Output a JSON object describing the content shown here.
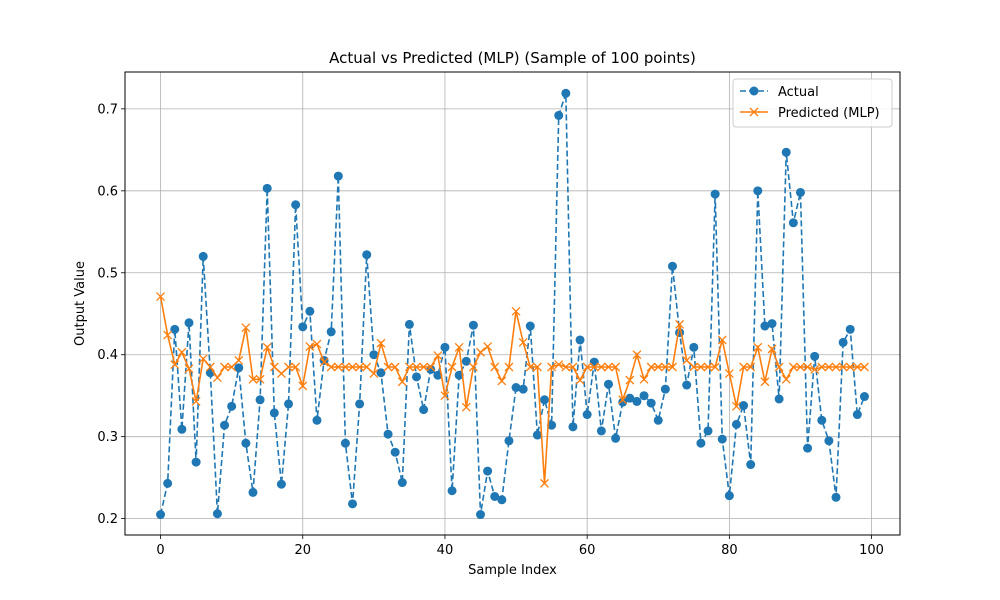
{
  "chart_data": {
    "type": "line",
    "title": "Actual vs Predicted (MLP) (Sample of 100 points)",
    "xlabel": "Sample Index",
    "ylabel": "Output Value",
    "xlim": [
      -5,
      104
    ],
    "ylim": [
      0.18,
      0.745
    ],
    "xticks": [
      0,
      20,
      40,
      60,
      80,
      100
    ],
    "yticks": [
      0.2,
      0.3,
      0.4,
      0.5,
      0.6,
      0.7
    ],
    "grid": true,
    "legend_position": "top-right",
    "series": [
      {
        "name": "Actual",
        "color": "#1f77b4",
        "line_style": "dashed",
        "marker": "circle",
        "values": [
          0.205,
          0.243,
          0.431,
          0.309,
          0.439,
          0.269,
          0.52,
          0.378,
          0.206,
          0.314,
          0.337,
          0.384,
          0.292,
          0.232,
          0.345,
          0.603,
          0.329,
          0.242,
          0.34,
          0.583,
          0.434,
          0.453,
          0.32,
          0.393,
          0.428,
          0.618,
          0.292,
          0.218,
          0.34,
          0.522,
          0.4,
          0.378,
          0.303,
          0.281,
          0.244,
          0.437,
          0.373,
          0.333,
          0.382,
          0.375,
          0.409,
          0.234,
          0.375,
          0.392,
          0.436,
          0.205,
          0.258,
          0.227,
          0.223,
          0.295,
          0.36,
          0.358,
          0.435,
          0.302,
          0.345,
          0.314,
          0.692,
          0.719,
          0.312,
          0.418,
          0.327,
          0.391,
          0.307,
          0.364,
          0.298,
          0.342,
          0.347,
          0.343,
          0.35,
          0.341,
          0.32,
          0.358,
          0.508,
          0.427,
          0.363,
          0.409,
          0.292,
          0.307,
          0.596,
          0.297,
          0.228,
          0.315,
          0.338,
          0.266,
          0.6,
          0.435,
          0.438,
          0.346,
          0.647,
          0.561,
          0.598,
          0.286,
          0.398,
          0.32,
          0.295,
          0.226,
          0.415,
          0.431,
          0.327,
          0.349
        ]
      },
      {
        "name": "Predicted (MLP)",
        "color": "#ff7f0e",
        "line_style": "solid",
        "marker": "x",
        "values": [
          0.471,
          0.424,
          0.388,
          0.403,
          0.383,
          0.343,
          0.395,
          0.385,
          0.372,
          0.385,
          0.385,
          0.393,
          0.433,
          0.37,
          0.37,
          0.409,
          0.385,
          0.377,
          0.385,
          0.385,
          0.362,
          0.41,
          0.413,
          0.391,
          0.385,
          0.385,
          0.385,
          0.385,
          0.385,
          0.385,
          0.377,
          0.414,
          0.385,
          0.385,
          0.367,
          0.385,
          0.385,
          0.385,
          0.385,
          0.399,
          0.35,
          0.385,
          0.409,
          0.336,
          0.385,
          0.403,
          0.41,
          0.385,
          0.368,
          0.385,
          0.453,
          0.415,
          0.385,
          0.385,
          0.243,
          0.385,
          0.388,
          0.385,
          0.385,
          0.369,
          0.385,
          0.385,
          0.385,
          0.385,
          0.385,
          0.345,
          0.369,
          0.4,
          0.37,
          0.385,
          0.385,
          0.385,
          0.385,
          0.437,
          0.393,
          0.385,
          0.385,
          0.385,
          0.385,
          0.418,
          0.377,
          0.337,
          0.385,
          0.385,
          0.409,
          0.367,
          0.407,
          0.385,
          0.37,
          0.385,
          0.385,
          0.385,
          0.382,
          0.385,
          0.385,
          0.385,
          0.385,
          0.385,
          0.385,
          0.385
        ]
      }
    ]
  }
}
